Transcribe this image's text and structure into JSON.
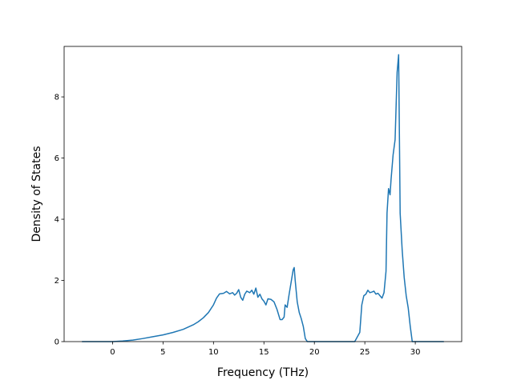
{
  "chart_data": {
    "type": "line",
    "title": "",
    "xlabel": "Frequency (THz)",
    "ylabel": "Density of States",
    "xlim": [
      -4.8,
      34.6
    ],
    "ylim": [
      0,
      9.65
    ],
    "xticks": [
      0,
      5,
      10,
      15,
      20,
      25,
      30
    ],
    "yticks": [
      0,
      2,
      4,
      6,
      8
    ],
    "grid": false,
    "legend": "none",
    "line_color": "#1f77b4",
    "series": [
      {
        "x": [
          -3,
          -1,
          0,
          0.5,
          1,
          2,
          3,
          4,
          5,
          6,
          7,
          8,
          8.5,
          9,
          9.5,
          10,
          10.3,
          10.6,
          11,
          11.3,
          11.6,
          11.9,
          12.1,
          12.3,
          12.5,
          12.7,
          12.9,
          13.1,
          13.3,
          13.6,
          13.8,
          14.0,
          14.2,
          14.4,
          14.6,
          14.8,
          15.0,
          15.2,
          15.4,
          15.7,
          16.0,
          16.3,
          16.6,
          16.8,
          17.0,
          17.1,
          17.3,
          17.5,
          17.7,
          17.9,
          18.0,
          18.1,
          18.3,
          18.5,
          18.7,
          18.9,
          19.1,
          19.3,
          20,
          22,
          24,
          24.5,
          24.7,
          24.9,
          25.1,
          25.3,
          25.5,
          25.7,
          25.9,
          26.1,
          26.3,
          26.5,
          26.7,
          26.9,
          27.1,
          27.2,
          27.35,
          27.5,
          27.6,
          27.8,
          28.0,
          28.2,
          28.35,
          28.5,
          28.7,
          28.9,
          29.1,
          29.3,
          29.5,
          29.7,
          30,
          32.8
        ],
        "y": [
          0,
          0,
          0,
          0.01,
          0.02,
          0.05,
          0.1,
          0.16,
          0.22,
          0.3,
          0.4,
          0.55,
          0.65,
          0.78,
          0.95,
          1.2,
          1.42,
          1.56,
          1.58,
          1.64,
          1.56,
          1.6,
          1.52,
          1.58,
          1.7,
          1.45,
          1.35,
          1.55,
          1.65,
          1.6,
          1.68,
          1.55,
          1.75,
          1.45,
          1.55,
          1.4,
          1.32,
          1.2,
          1.4,
          1.38,
          1.3,
          1.05,
          0.72,
          0.72,
          0.8,
          1.2,
          1.12,
          1.55,
          1.95,
          2.35,
          2.42,
          2.0,
          1.3,
          0.95,
          0.75,
          0.5,
          0.1,
          0,
          0,
          0,
          0,
          0.3,
          1.2,
          1.5,
          1.55,
          1.68,
          1.6,
          1.62,
          1.65,
          1.55,
          1.58,
          1.5,
          1.42,
          1.6,
          2.3,
          4.2,
          5.0,
          4.8,
          5.3,
          6.1,
          6.6,
          8.8,
          9.38,
          4.2,
          3.0,
          2.1,
          1.5,
          1.1,
          0.5,
          0,
          0,
          0
        ]
      }
    ]
  }
}
